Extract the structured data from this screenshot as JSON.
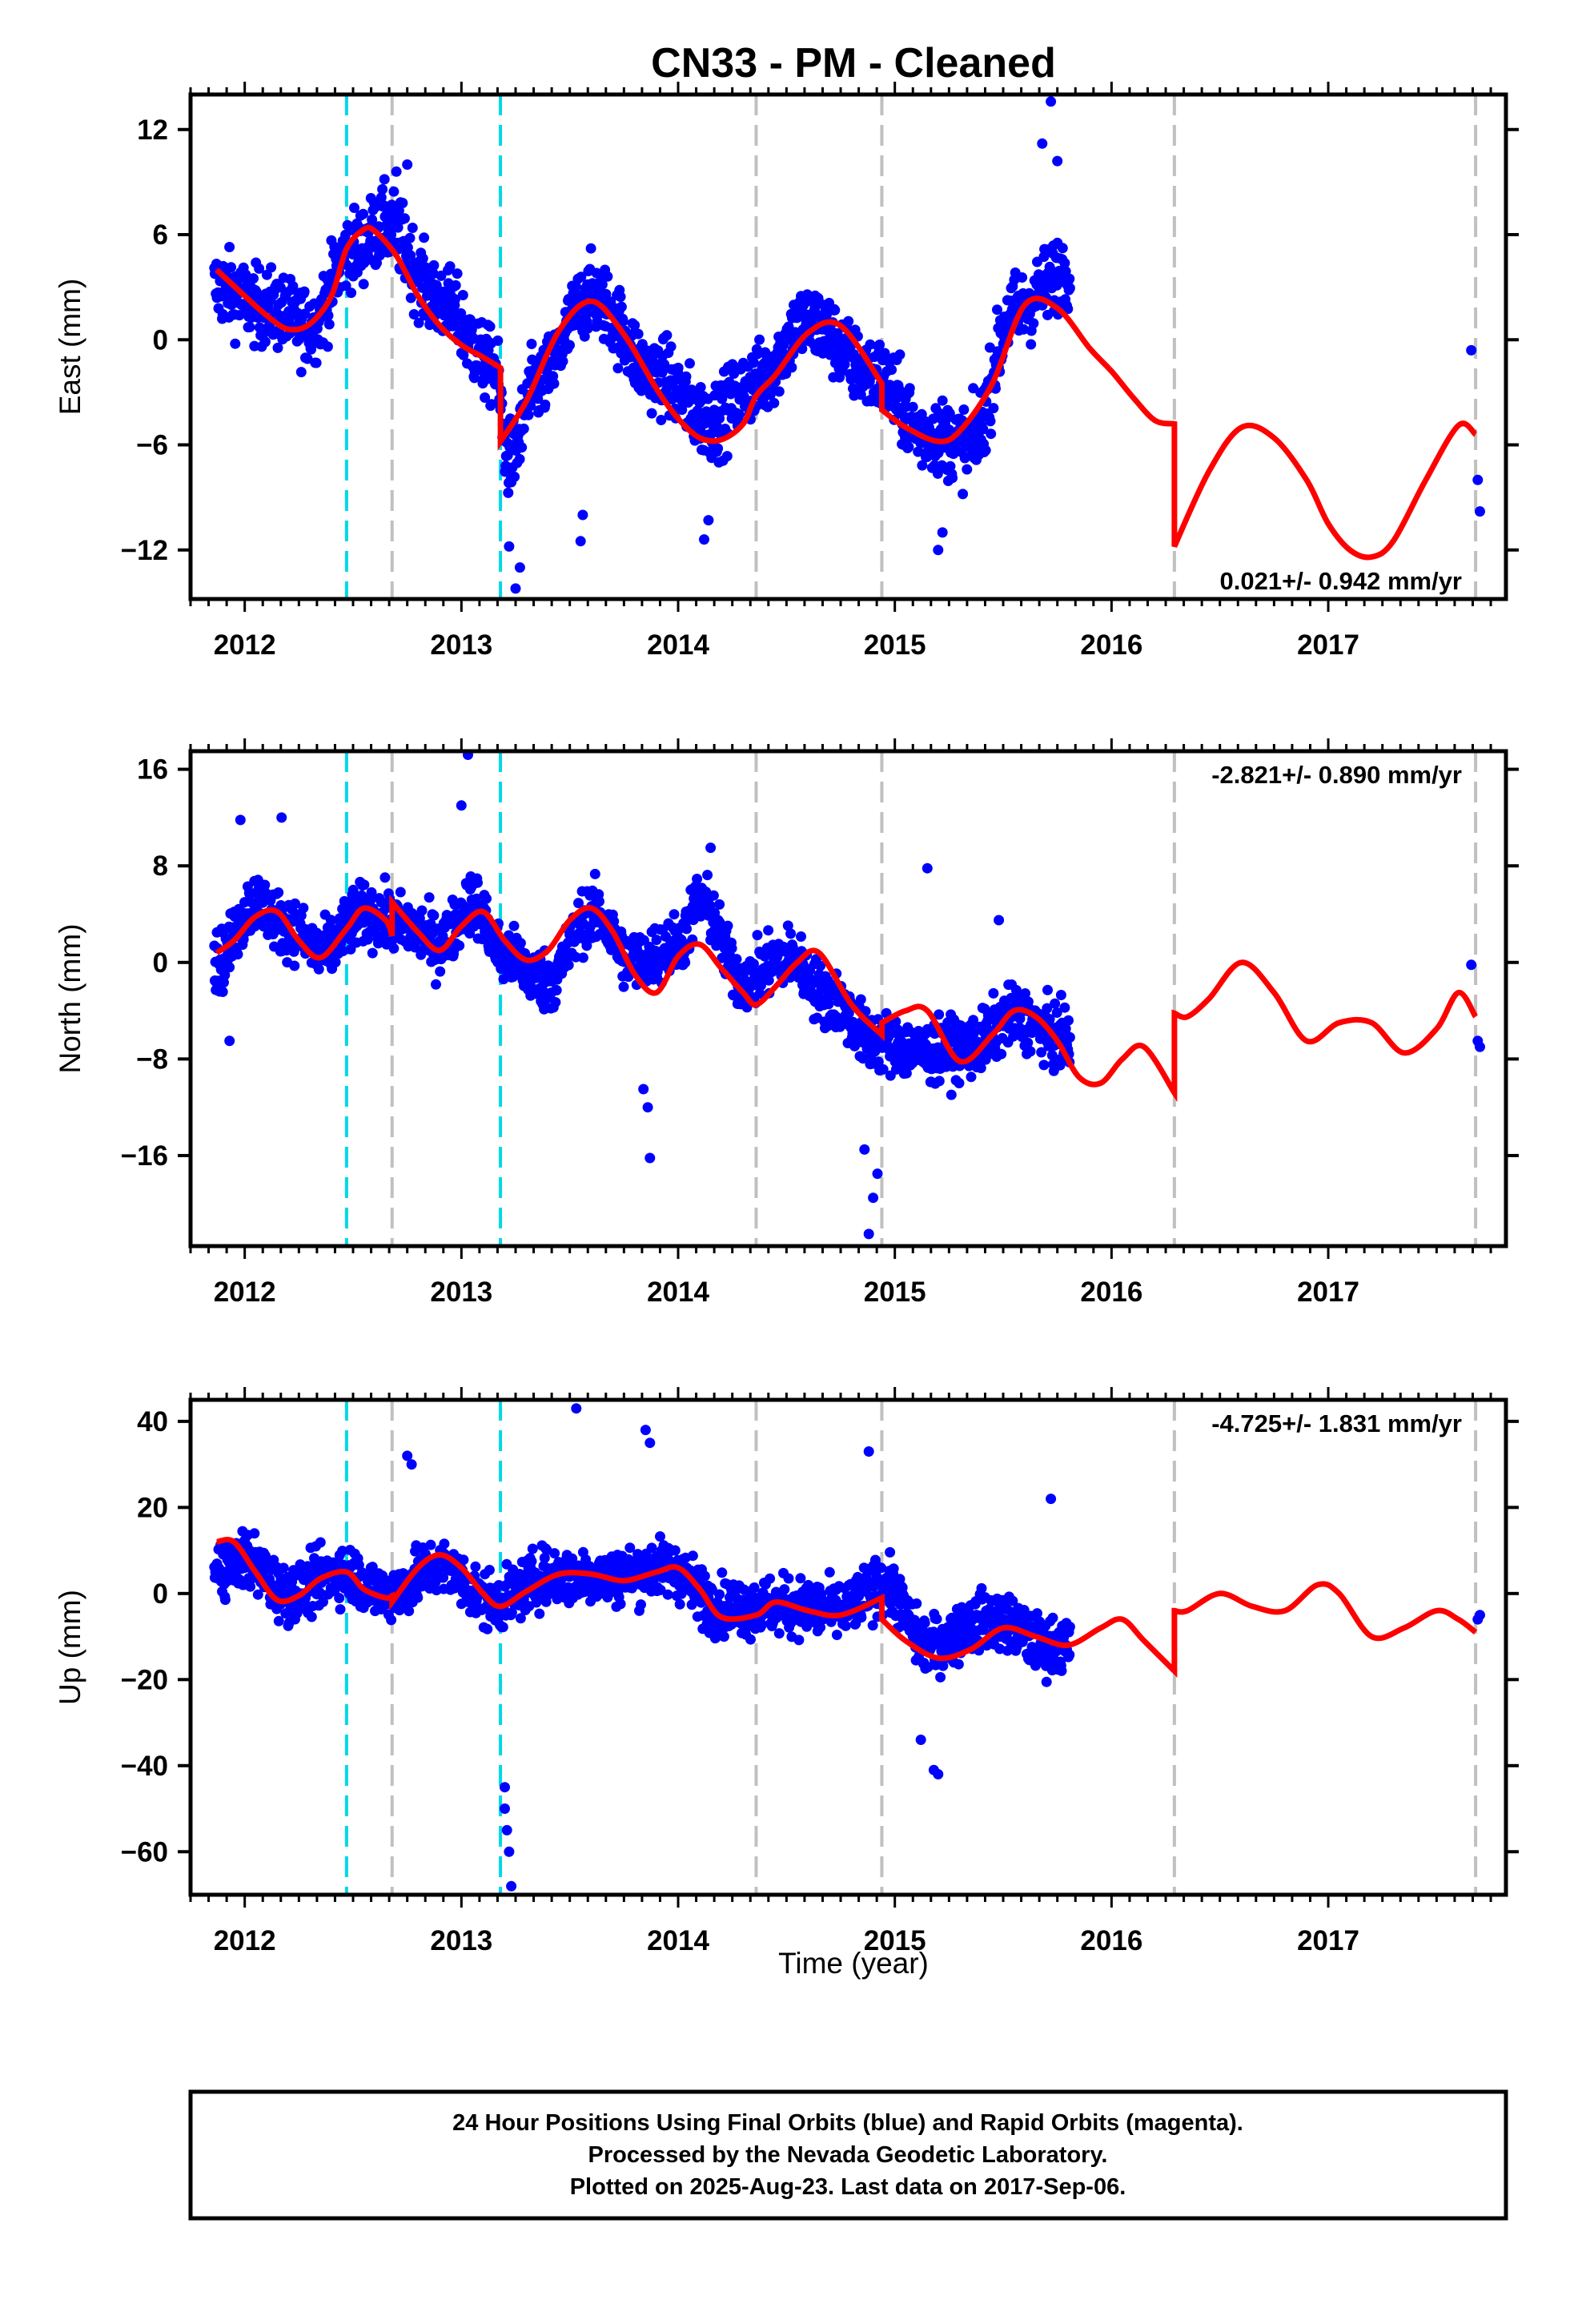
{
  "title": "CN33  - PM - Cleaned",
  "xlabel": "Time (year)",
  "x_ticks": [
    2012,
    2013,
    2014,
    2015,
    2016,
    2017
  ],
  "xlim": [
    2011.75,
    2017.82
  ],
  "event_lines": {
    "cyan": [
      2012.47,
      2013.18
    ],
    "gray": [
      2012.68,
      2014.36,
      2014.94,
      2016.29,
      2017.68
    ]
  },
  "colors": {
    "data": "#0000ff",
    "model": "#ff0000",
    "cyan": "#00d8e8",
    "gray": "#c0c0c0"
  },
  "footer": {
    "line1": "24 Hour Positions Using Final Orbits (blue) and Rapid Orbits (magenta).",
    "line2": "Processed by the Nevada Geodetic Laboratory.",
    "line3": "Plotted on 2025-Aug-23. Last data on 2017-Sep-06."
  },
  "chart_data": [
    {
      "type": "scatter",
      "name": "east",
      "ylabel": "East (mm)",
      "ylim": [
        -14.8,
        14.0
      ],
      "y_ticks": [
        -12,
        -6,
        0,
        6,
        12
      ],
      "y_tick_labels": [
        "−12",
        "−6",
        "0",
        "6",
        "12"
      ],
      "rate_text": "0.021+/- 0.942 mm/yr",
      "rate_position": "bottom-right",
      "model_x": [
        2011.87,
        2012.0,
        2012.1,
        2012.2,
        2012.3,
        2012.4,
        2012.47,
        2012.55,
        2012.6,
        2012.7,
        2012.8,
        2012.9,
        2013.0,
        2013.1,
        2013.18,
        2013.18,
        2013.3,
        2013.45,
        2013.6,
        2013.75,
        2013.9,
        2014.0,
        2014.1,
        2014.2,
        2014.3,
        2014.36,
        2014.45,
        2014.6,
        2014.75,
        2014.94,
        2014.94,
        2015.05,
        2015.2,
        2015.3,
        2015.45,
        2015.6,
        2015.75,
        2015.9,
        2016.0,
        2016.1,
        2016.2,
        2016.29,
        2016.29,
        2016.45,
        2016.6,
        2016.75,
        2016.9,
        2017.0,
        2017.1,
        2017.2,
        2017.3,
        2017.45,
        2017.6,
        2017.68
      ],
      "model_y": [
        4.0,
        2.5,
        1.4,
        0.6,
        0.9,
        2.5,
        5.2,
        6.3,
        6.2,
        4.8,
        2.5,
        0.8,
        -0.3,
        -1.0,
        -1.6,
        -5.8,
        -3.5,
        0.5,
        2.2,
        0.3,
        -2.8,
        -4.5,
        -5.6,
        -5.7,
        -4.8,
        -3.2,
        -2.0,
        0.4,
        0.8,
        -2.5,
        -4.0,
        -5.0,
        -5.8,
        -5.2,
        -2.5,
        2.0,
        1.8,
        -0.5,
        -1.8,
        -3.3,
        -4.6,
        -4.8,
        -11.8,
        -7.5,
        -5.0,
        -5.6,
        -8.0,
        -10.5,
        -12.0,
        -12.4,
        -11.5,
        -8.0,
        -4.9,
        -5.4
      ],
      "anchors": [
        [
          2011.87,
          3.0
        ],
        [
          2012.1,
          1.8
        ],
        [
          2012.3,
          0.8
        ],
        [
          2012.5,
          5.2
        ],
        [
          2012.65,
          6.5
        ],
        [
          2012.9,
          2.2
        ],
        [
          2013.15,
          -1.6
        ],
        [
          2013.22,
          -6.8
        ],
        [
          2013.35,
          -2.5
        ],
        [
          2013.6,
          2.5
        ],
        [
          2013.9,
          -2.0
        ],
        [
          2014.15,
          -4.6
        ],
        [
          2014.35,
          -2.5
        ],
        [
          2014.6,
          1.0
        ],
        [
          2014.9,
          -2.0
        ],
        [
          2015.15,
          -5.4
        ],
        [
          2015.35,
          -6.0
        ],
        [
          2015.55,
          1.6
        ],
        [
          2015.8,
          4.0
        ]
      ],
      "spread": 2.0,
      "outliers": [
        [
          2015.72,
          13.6
        ],
        [
          2015.68,
          11.2
        ],
        [
          2015.75,
          10.2
        ],
        [
          2013.25,
          -14.2
        ],
        [
          2013.27,
          -13.0
        ],
        [
          2013.22,
          -11.8
        ],
        [
          2013.55,
          -11.5
        ],
        [
          2013.56,
          -10.0
        ],
        [
          2014.12,
          -11.4
        ],
        [
          2014.14,
          -10.3
        ],
        [
          2015.2,
          -12.0
        ],
        [
          2015.22,
          -11.0
        ],
        [
          2012.75,
          10.0
        ],
        [
          2012.7,
          9.6
        ],
        [
          2017.66,
          -0.6
        ],
        [
          2017.69,
          -8.0
        ],
        [
          2017.7,
          -9.8
        ]
      ]
    },
    {
      "type": "scatter",
      "name": "north",
      "ylabel": "North (mm)",
      "ylim": [
        -23.5,
        17.5
      ],
      "y_ticks": [
        -16,
        -8,
        0,
        8,
        16
      ],
      "y_tick_labels": [
        "−16",
        "−8",
        "0",
        "8",
        "16"
      ],
      "rate_text": "-2.821+/- 0.890 mm/yr",
      "rate_position": "top-right",
      "model_x": [
        2011.87,
        2011.95,
        2012.05,
        2012.15,
        2012.25,
        2012.35,
        2012.47,
        2012.55,
        2012.65,
        2012.68,
        2012.68,
        2012.8,
        2012.9,
        2013.0,
        2013.1,
        2013.2,
        2013.3,
        2013.4,
        2013.5,
        2013.6,
        2013.7,
        2013.8,
        2013.9,
        2014.0,
        2014.1,
        2014.2,
        2014.3,
        2014.36,
        2014.45,
        2014.55,
        2014.65,
        2014.8,
        2014.94,
        2014.94,
        2015.05,
        2015.15,
        2015.3,
        2015.45,
        2015.55,
        2015.65,
        2015.75,
        2015.85,
        2015.95,
        2016.05,
        2016.15,
        2016.29,
        2016.29,
        2016.35,
        2016.45,
        2016.6,
        2016.75,
        2016.9,
        2017.05,
        2017.2,
        2017.35,
        2017.5,
        2017.6,
        2017.68
      ],
      "model_y": [
        0.8,
        1.8,
        3.8,
        4.2,
        1.8,
        0.4,
        2.8,
        4.5,
        3.5,
        2.2,
        5.0,
        2.5,
        1.0,
        3.0,
        4.2,
        1.8,
        0.2,
        1.0,
        3.5,
        4.5,
        2.5,
        -1.0,
        -2.5,
        0.5,
        1.5,
        -0.5,
        -2.5,
        -3.5,
        -2.0,
        0.0,
        0.8,
        -3.5,
        -6.0,
        -5.0,
        -4.0,
        -4.0,
        -8.2,
        -6.0,
        -4.0,
        -4.5,
        -6.5,
        -9.5,
        -10.0,
        -8.0,
        -7.0,
        -10.8,
        -4.2,
        -4.5,
        -3.0,
        0.0,
        -2.5,
        -6.5,
        -5.0,
        -5.0,
        -7.5,
        -5.5,
        -2.5,
        -4.5
      ],
      "anchors": [
        [
          2011.87,
          0.0
        ],
        [
          2012.05,
          5.0
        ],
        [
          2012.2,
          3.0
        ],
        [
          2012.35,
          0.8
        ],
        [
          2012.55,
          4.0
        ],
        [
          2012.75,
          3.0
        ],
        [
          2012.9,
          1.5
        ],
        [
          2013.05,
          5.0
        ],
        [
          2013.2,
          0.5
        ],
        [
          2013.4,
          -1.5
        ],
        [
          2013.6,
          4.0
        ],
        [
          2013.8,
          0.0
        ],
        [
          2014.0,
          1.5
        ],
        [
          2014.1,
          5.0
        ],
        [
          2014.3,
          -1.5
        ],
        [
          2014.5,
          0.5
        ],
        [
          2014.7,
          -3.0
        ],
        [
          2014.9,
          -6.5
        ],
        [
          2015.15,
          -7.5
        ],
        [
          2015.35,
          -7.0
        ],
        [
          2015.55,
          -4.5
        ],
        [
          2015.8,
          -6.5
        ]
      ],
      "spread": 2.3,
      "outliers": [
        [
          2013.03,
          17.2
        ],
        [
          2013.0,
          13.0
        ],
        [
          2011.98,
          11.8
        ],
        [
          2012.17,
          12.0
        ],
        [
          2013.84,
          -10.5
        ],
        [
          2013.86,
          -12.0
        ],
        [
          2013.87,
          -16.2
        ],
        [
          2014.88,
          -22.5
        ],
        [
          2014.9,
          -19.5
        ],
        [
          2014.92,
          -17.5
        ],
        [
          2014.86,
          -15.5
        ],
        [
          2015.15,
          7.8
        ],
        [
          2015.48,
          3.5
        ],
        [
          2014.15,
          9.5
        ],
        [
          2017.66,
          -0.2
        ],
        [
          2017.69,
          -6.5
        ],
        [
          2017.7,
          -7.0
        ],
        [
          2011.93,
          -6.5
        ]
      ]
    },
    {
      "type": "scatter",
      "name": "up",
      "ylabel": "Up (mm)",
      "ylim": [
        -70,
        45
      ],
      "y_ticks": [
        -60,
        -40,
        -20,
        0,
        20,
        40
      ],
      "y_tick_labels": [
        "−60",
        "−40",
        "−20",
        "0",
        "20",
        "40"
      ],
      "rate_text": "-4.725+/- 1.831 mm/yr",
      "rate_position": "top-right",
      "model_x": [
        2011.87,
        2011.95,
        2012.05,
        2012.15,
        2012.25,
        2012.35,
        2012.47,
        2012.55,
        2012.65,
        2012.68,
        2012.68,
        2012.8,
        2012.9,
        2013.0,
        2013.1,
        2013.18,
        2013.3,
        2013.45,
        2013.6,
        2013.75,
        2013.9,
        2014.0,
        2014.1,
        2014.2,
        2014.36,
        2014.45,
        2014.6,
        2014.75,
        2014.94,
        2014.94,
        2015.05,
        2015.2,
        2015.35,
        2015.5,
        2015.65,
        2015.8,
        2015.95,
        2016.05,
        2016.15,
        2016.29,
        2016.29,
        2016.35,
        2016.5,
        2016.65,
        2016.8,
        2016.95,
        2017.05,
        2017.2,
        2017.35,
        2017.5,
        2017.6,
        2017.68
      ],
      "model_y": [
        12.0,
        12.0,
        5.0,
        -1.5,
        -0.5,
        3.5,
        5.0,
        1.0,
        -1.0,
        -0.5,
        -2.0,
        6.0,
        9.0,
        6.0,
        0.0,
        -3.0,
        0.5,
        4.5,
        4.5,
        3.0,
        5.0,
        6.0,
        1.0,
        -5.5,
        -5.0,
        -2.0,
        -4.0,
        -5.0,
        -1.0,
        -6.0,
        -11.0,
        -15.0,
        -13.0,
        -8.0,
        -10.0,
        -12.0,
        -8.0,
        -6.0,
        -11.0,
        -18.0,
        -4.0,
        -4.0,
        0.0,
        -3.0,
        -4.0,
        2.0,
        0.0,
        -10.0,
        -8.0,
        -4.0,
        -6.0,
        -9.0
      ],
      "anchors": [
        [
          2011.87,
          5.0
        ],
        [
          2012.0,
          8.0
        ],
        [
          2012.2,
          0.0
        ],
        [
          2012.45,
          5.0
        ],
        [
          2012.65,
          0.0
        ],
        [
          2012.9,
          6.0
        ],
        [
          2013.15,
          -2.0
        ],
        [
          2013.4,
          4.0
        ],
        [
          2013.7,
          4.0
        ],
        [
          2013.95,
          6.0
        ],
        [
          2014.2,
          -3.0
        ],
        [
          2014.5,
          -3.0
        ],
        [
          2014.75,
          -4.0
        ],
        [
          2014.95,
          2.0
        ],
        [
          2015.15,
          -12.0
        ],
        [
          2015.45,
          -6.0
        ],
        [
          2015.7,
          -12.0
        ]
      ],
      "spread": 6.0,
      "outliers": [
        [
          2013.53,
          43.0
        ],
        [
          2013.85,
          38.0
        ],
        [
          2013.87,
          35.0
        ],
        [
          2014.88,
          33.0
        ],
        [
          2012.75,
          32.0
        ],
        [
          2012.77,
          30.0
        ],
        [
          2013.2,
          -50.0
        ],
        [
          2013.21,
          -55.0
        ],
        [
          2013.22,
          -60.0
        ],
        [
          2013.23,
          -68.0
        ],
        [
          2013.2,
          -45.0
        ],
        [
          2015.18,
          -41.0
        ],
        [
          2015.2,
          -42.0
        ],
        [
          2015.12,
          -34.0
        ],
        [
          2015.72,
          22.0
        ],
        [
          2017.69,
          -6.0
        ],
        [
          2017.7,
          -5.0
        ]
      ]
    }
  ]
}
